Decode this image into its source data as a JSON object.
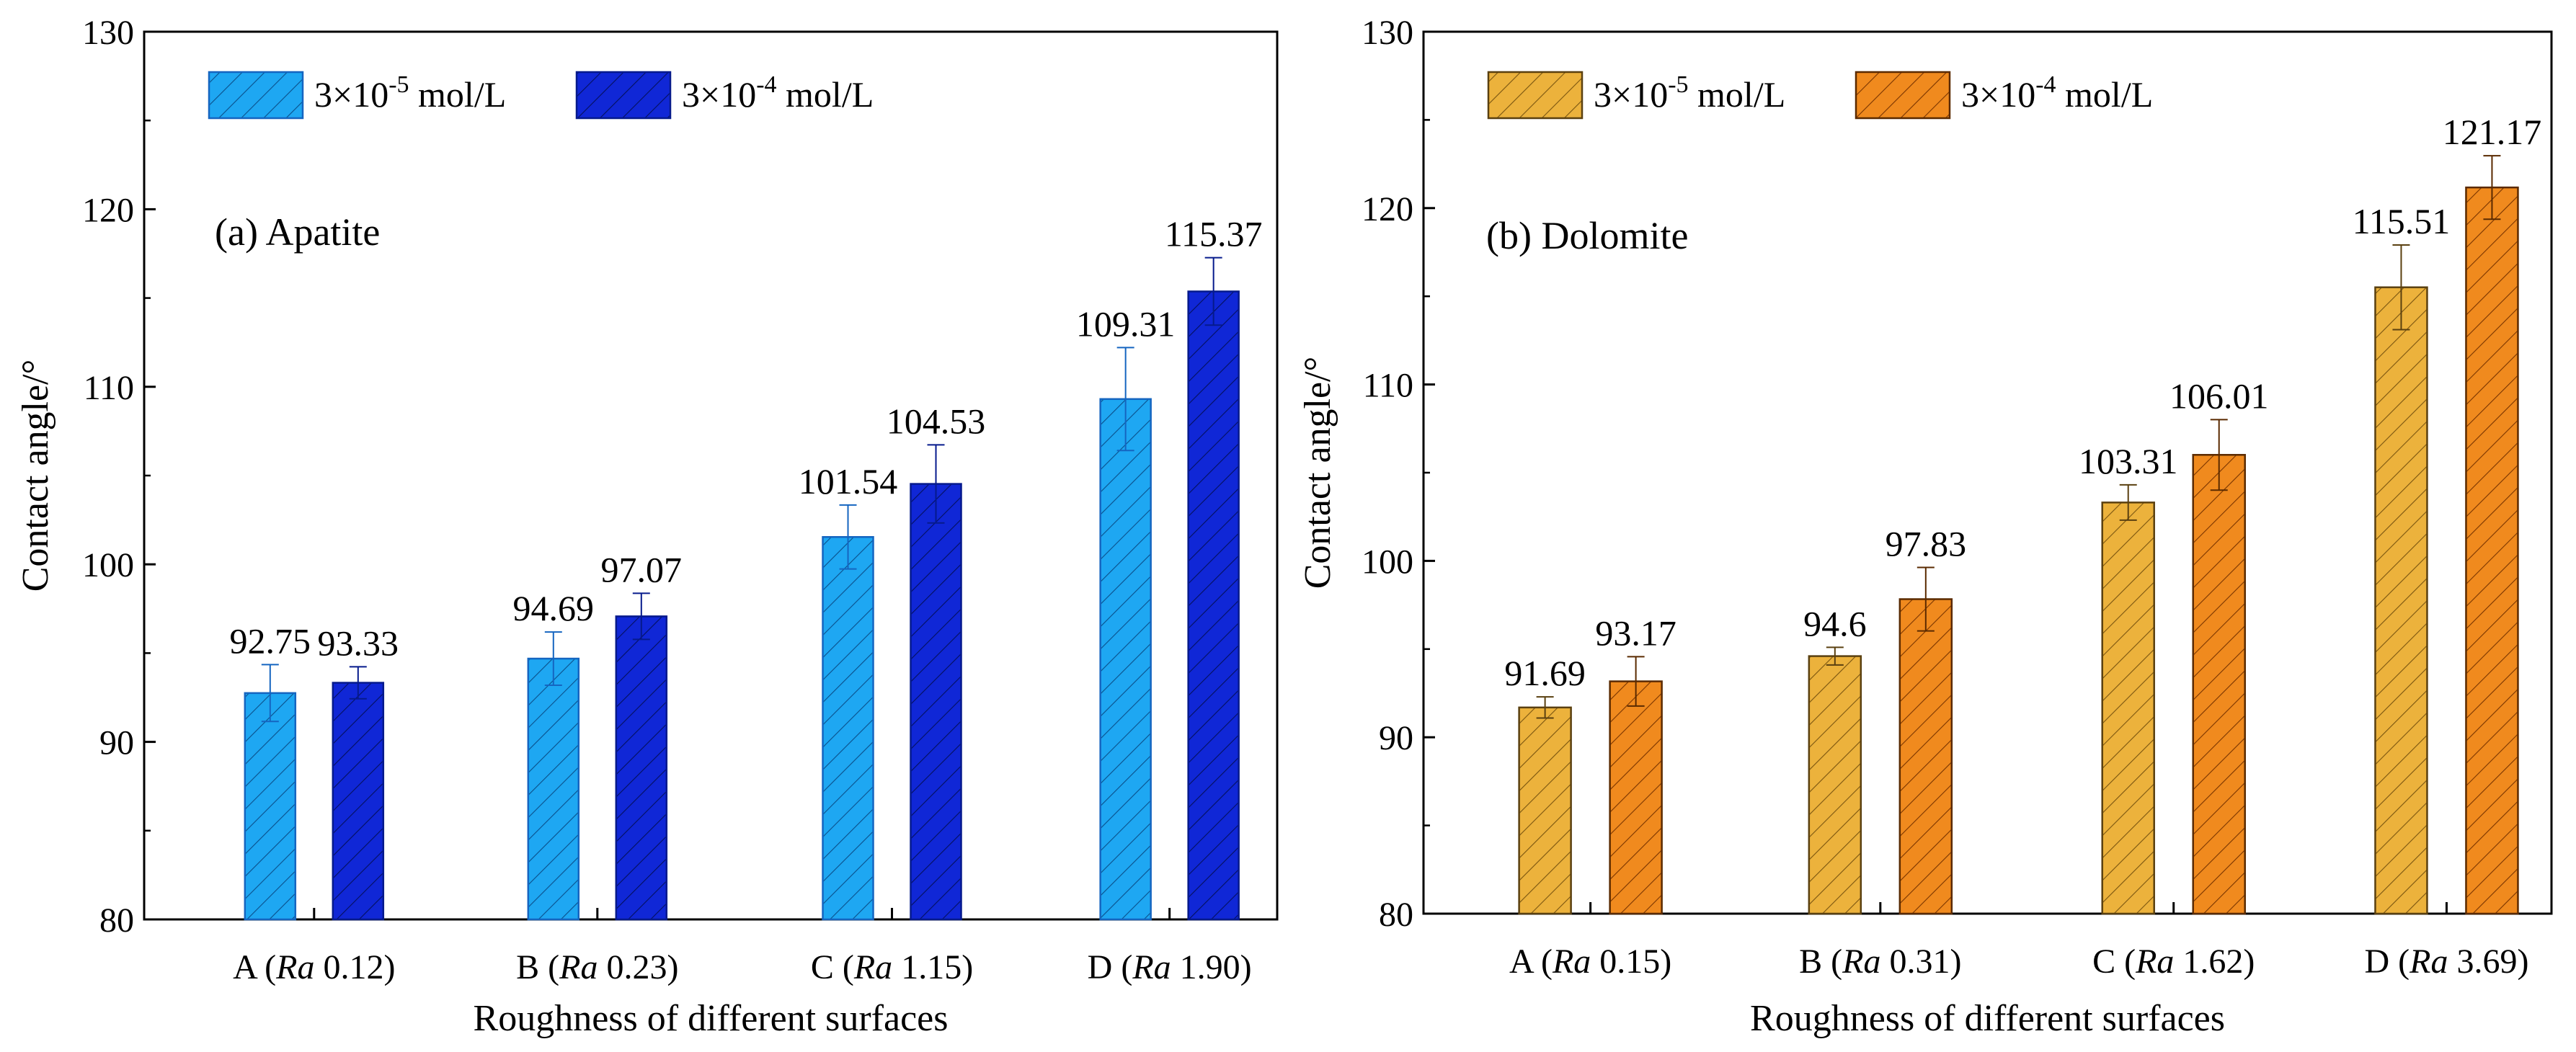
{
  "chart_data": [
    {
      "type": "bar",
      "title": "(a) Apatite",
      "xlabel": "Roughness of different surfaces",
      "ylabel": "Contact angle/°",
      "ylim": [
        80,
        130
      ],
      "yticks": [
        "80",
        "90",
        "100",
        "110",
        "120",
        "130"
      ],
      "categories": [
        {
          "prefix": "A (",
          "ra": "Ra",
          "value": " 0.12)"
        },
        {
          "prefix": "B (",
          "ra": "Ra",
          "value": " 0.23)"
        },
        {
          "prefix": "C (",
          "ra": "Ra",
          "value": " 1.15)"
        },
        {
          "prefix": "D (",
          "ra": "Ra",
          "value": " 1.90)"
        }
      ],
      "series": [
        {
          "legend": {
            "base": "3×10",
            "exp": "-5",
            "unit": " mol/L"
          },
          "color": "#1ea7f2",
          "hatch": "#0a4f8a",
          "edge": "#1565c0",
          "values": [
            92.75,
            94.69,
            101.54,
            109.31
          ],
          "labels": [
            "92.75",
            "94.69",
            "101.54",
            "109.31"
          ],
          "errors": [
            1.6,
            1.5,
            1.8,
            2.9
          ]
        },
        {
          "legend": {
            "base": "3×10",
            "exp": "-4",
            "unit": " mol/L"
          },
          "color": "#1027d6",
          "hatch": "#04105e",
          "edge": "#061a8c",
          "values": [
            93.33,
            97.07,
            104.53,
            115.37
          ],
          "labels": [
            "93.33",
            "97.07",
            "104.53",
            "115.37"
          ],
          "errors": [
            0.9,
            1.3,
            2.2,
            1.9
          ]
        }
      ]
    },
    {
      "type": "bar",
      "title": "(b) Dolomite",
      "xlabel": "Roughness of different surfaces",
      "ylabel": "Contact angle/°",
      "ylim": [
        80,
        130
      ],
      "yticks": [
        "80",
        "90",
        "100",
        "110",
        "120",
        "130"
      ],
      "categories": [
        {
          "prefix": "A (",
          "ra": "Ra",
          "value": " 0.15)"
        },
        {
          "prefix": "B (",
          "ra": "Ra",
          "value": " 0.31)"
        },
        {
          "prefix": "C (",
          "ra": "Ra",
          "value": " 1.62)"
        },
        {
          "prefix": "D (",
          "ra": "Ra",
          "value": " 3.69)"
        }
      ],
      "series": [
        {
          "legend": {
            "base": "3×10",
            "exp": "-5",
            "unit": " mol/L"
          },
          "color": "#ecb23c",
          "hatch": "#7a5510",
          "edge": "#5a4010",
          "values": [
            91.69,
            94.6,
            103.31,
            115.51
          ],
          "labels": [
            "91.69",
            "94.6",
            "103.31",
            "115.51"
          ],
          "errors": [
            0.6,
            0.5,
            1.0,
            2.4
          ]
        },
        {
          "legend": {
            "base": "3×10",
            "exp": "-4",
            "unit": " mol/L"
          },
          "color": "#f08a1e",
          "hatch": "#7a3500",
          "edge": "#5a2a00",
          "values": [
            93.17,
            97.83,
            106.01,
            121.17
          ],
          "labels": [
            "93.17",
            "97.83",
            "106.01",
            "121.17"
          ],
          "errors": [
            1.4,
            1.8,
            2.0,
            1.8
          ]
        }
      ]
    }
  ]
}
